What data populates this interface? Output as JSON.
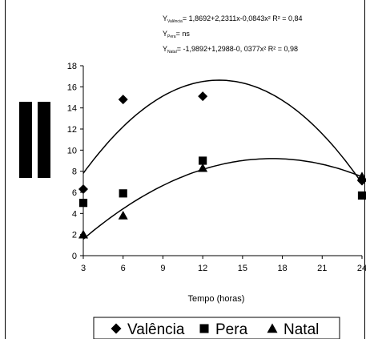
{
  "chart_data": {
    "type": "scatter",
    "xlabel": "Tempo (horas)",
    "ylabel": "",
    "x_ticks": [
      3,
      6,
      9,
      12,
      15,
      18,
      21,
      24
    ],
    "y_ticks": [
      0,
      2,
      4,
      6,
      8,
      10,
      12,
      14,
      16,
      18
    ],
    "xlim": [
      3,
      24
    ],
    "ylim": [
      0,
      18
    ],
    "grid": false,
    "legend_position": "bottom",
    "equations": [
      {
        "prefix": "Y",
        "sub": "Valência",
        "body": "= 1,8692+2,2311x-0,0843x² R² = 0,84"
      },
      {
        "prefix": "Y",
        "sub": "Pera",
        "body": "= ns"
      },
      {
        "prefix": "Y",
        "sub": "Natal",
        "body": "= -1,9892+1,2988-0, 0377x² R² = 0,98"
      }
    ],
    "series": [
      {
        "name": "Valência",
        "marker": "diamond",
        "x": [
          3,
          6,
          12,
          24
        ],
        "y": [
          6.3,
          14.8,
          15.1,
          7.1
        ],
        "fit": {
          "a": 1.8692,
          "b": 2.2311,
          "c": -0.0843
        }
      },
      {
        "name": "Pera",
        "marker": "square",
        "x": [
          3,
          6,
          12,
          24
        ],
        "y": [
          5.0,
          5.9,
          9.0,
          5.7
        ]
      },
      {
        "name": "Natal",
        "marker": "triangle",
        "x": [
          3,
          6,
          12,
          24
        ],
        "y": [
          2.0,
          3.8,
          8.3,
          7.5
        ],
        "fit": {
          "a": -1.9892,
          "b": 1.2988,
          "c": -0.0377
        }
      }
    ]
  }
}
